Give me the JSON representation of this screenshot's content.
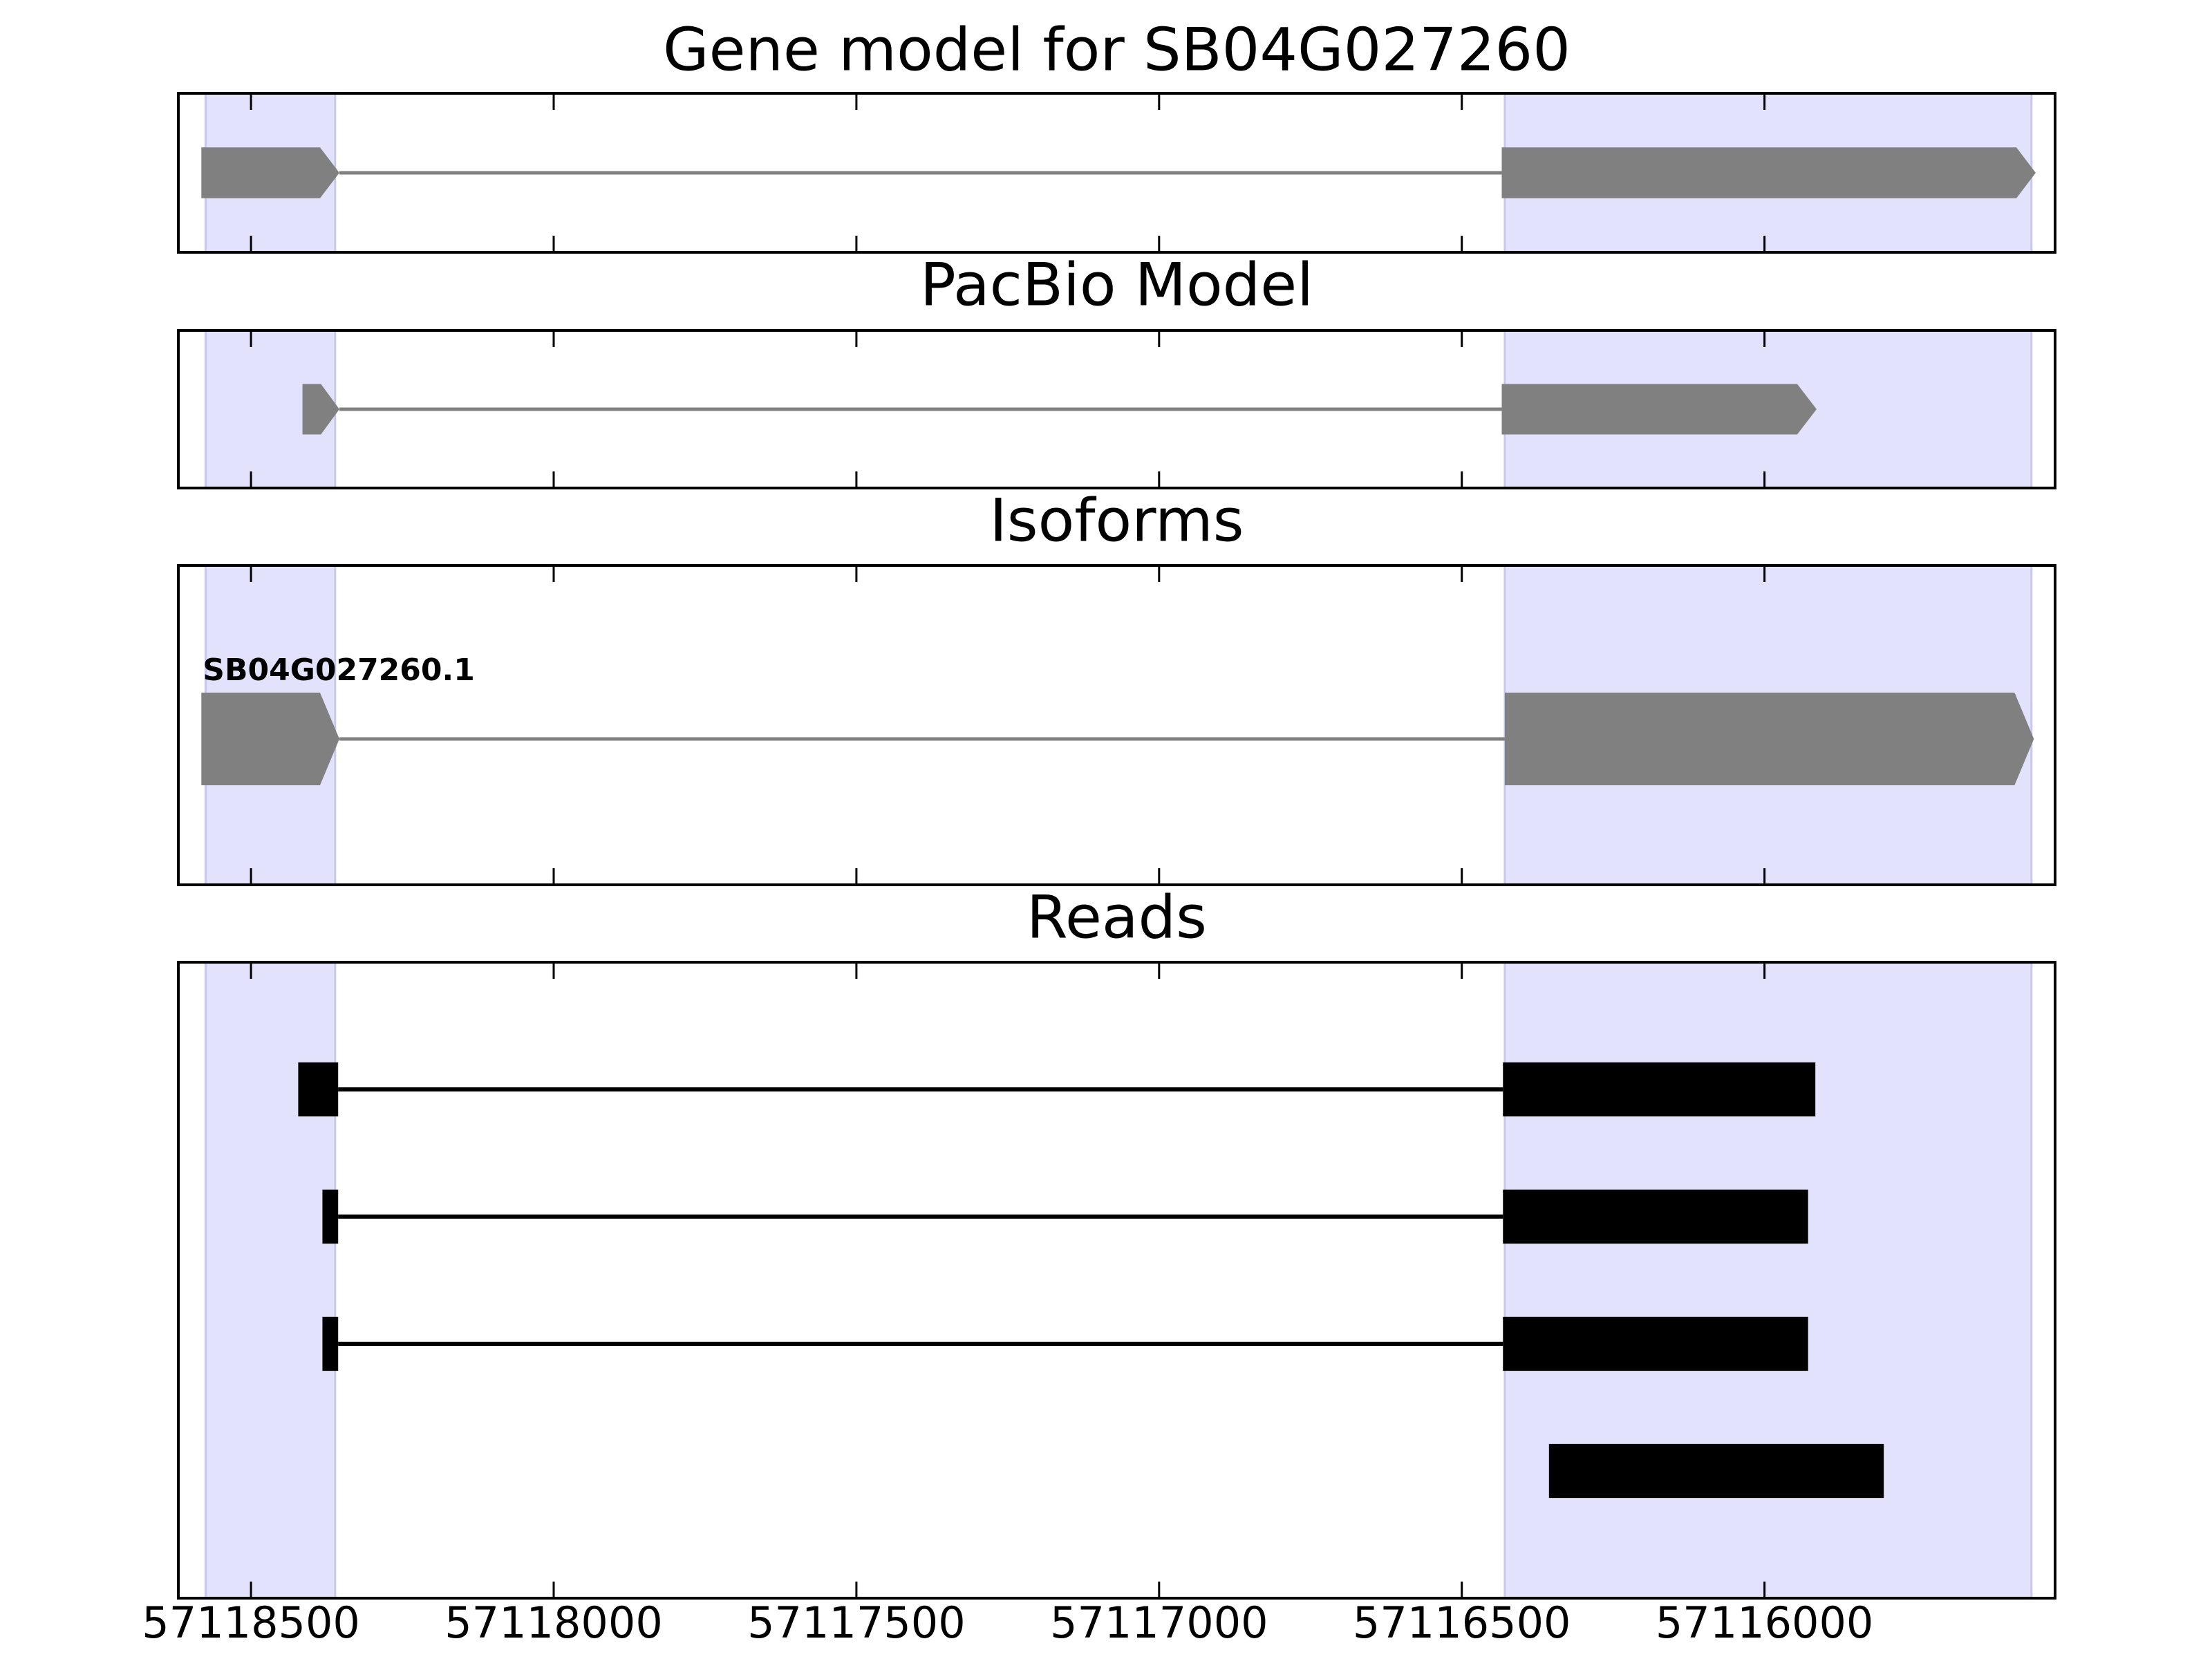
{
  "chart_data": [
    {
      "type": "gene",
      "title": "Gene model for SB04G027260",
      "xlim": [
        57118620,
        57115520
      ],
      "xticks": [
        57118500,
        57118000,
        57117500,
        57117000,
        57116500,
        57116000
      ],
      "highlights": [
        [
          57118575,
          57118361
        ],
        [
          57116429,
          57115559
        ]
      ],
      "highlight_color": "#e2e2fc",
      "color": "#808080",
      "arrows": true,
      "tracks": [
        {
          "exons": [
            [
              57118582,
              57118354
            ],
            [
              57116434,
              57115552
            ]
          ]
        }
      ]
    },
    {
      "type": "gene",
      "title": "PacBio Model",
      "xlim": [
        57118620,
        57115520
      ],
      "xticks": [
        57118500,
        57118000,
        57117500,
        57117000,
        57116500,
        57116000
      ],
      "highlights": [
        [
          57118575,
          57118361
        ],
        [
          57116429,
          57115559
        ]
      ],
      "highlight_color": "#e2e2fc",
      "color": "#808080",
      "arrows": true,
      "tracks": [
        {
          "exons": [
            [
              57118415,
              57118354
            ],
            [
              57116434,
              57115914
            ]
          ]
        }
      ]
    },
    {
      "type": "gene",
      "title": "Isoforms",
      "xlim": [
        57118620,
        57115520
      ],
      "xticks": [
        57118500,
        57118000,
        57117500,
        57117000,
        57116500,
        57116000
      ],
      "highlights": [
        [
          57118575,
          57118361
        ],
        [
          57116429,
          57115559
        ]
      ],
      "highlight_color": "#e2e2fc",
      "color": "#808080",
      "arrows": true,
      "tracks": [
        {
          "name": "SB04G027260.1",
          "exons": [
            [
              57118582,
              57118354
            ],
            [
              57116429,
              57115555
            ]
          ]
        }
      ]
    },
    {
      "type": "gene",
      "title": "Reads",
      "xlim": [
        57118620,
        57115520
      ],
      "xticks": [
        57118500,
        57118000,
        57117500,
        57117000,
        57116500,
        57116000
      ],
      "highlights": [
        [
          57118575,
          57118361
        ],
        [
          57116429,
          57115559
        ]
      ],
      "highlight_color": "#e2e2fc",
      "color": "#000000",
      "arrows": false,
      "tracks": [
        {
          "exons": [
            [
              57118422,
              57118356
            ],
            [
              57116432,
              57115916
            ]
          ]
        },
        {
          "exons": [
            [
              57118382,
              57118356
            ],
            [
              57116432,
              57115928
            ]
          ]
        },
        {
          "exons": [
            [
              57118382,
              57118356
            ],
            [
              57116432,
              57115928
            ]
          ]
        },
        {
          "exons": [
            [
              57116356,
              57115803
            ]
          ]
        }
      ]
    }
  ]
}
